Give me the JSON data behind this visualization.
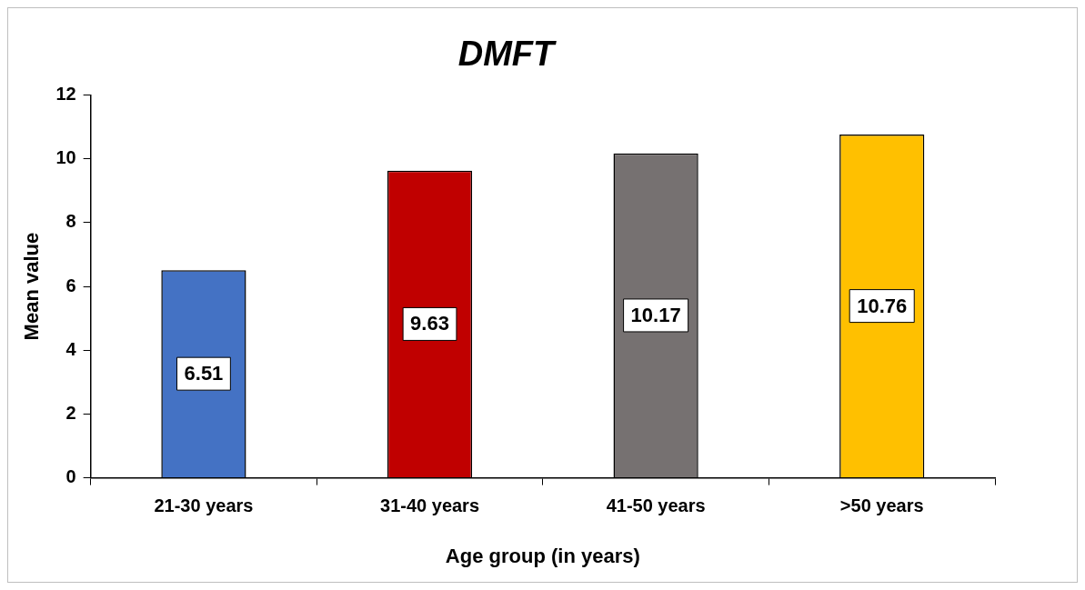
{
  "chart_data": {
    "type": "bar",
    "title": "DMFT",
    "xlabel": "Age group (in years)",
    "ylabel": "Mean value",
    "categories": [
      "21-30 years",
      "31-40 years",
      "41-50 years",
      ">50 years"
    ],
    "values": [
      6.51,
      9.63,
      10.17,
      10.76
    ],
    "colors": [
      "#4472c4",
      "#c00000",
      "#767171",
      "#ffc000"
    ],
    "ylim": [
      0,
      12
    ],
    "yticks": [
      0,
      2,
      4,
      6,
      8,
      10,
      12
    ],
    "grid": false,
    "legend": false,
    "data_labels": true
  }
}
